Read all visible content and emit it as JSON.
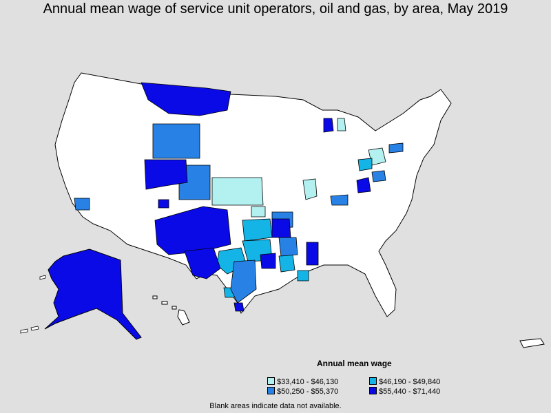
{
  "title": "Annual mean wage of service unit operators, oil and gas, by area, May 2019",
  "legend": {
    "title": "Annual mean wage",
    "items": [
      {
        "label": "$33,410 - $46,130",
        "color": "#b3f0f0"
      },
      {
        "label": "$46,190 - $49,840",
        "color": "#14b4e6"
      },
      {
        "label": "$50,250 - $55,370",
        "color": "#2882e6"
      },
      {
        "label": "$55,440 - $71,440",
        "color": "#0a0ae6"
      }
    ]
  },
  "footnote": "Blank areas indicate data not available.",
  "colors": {
    "background": "#e0e0e0",
    "land": "#ffffff",
    "border": "#000000"
  }
}
